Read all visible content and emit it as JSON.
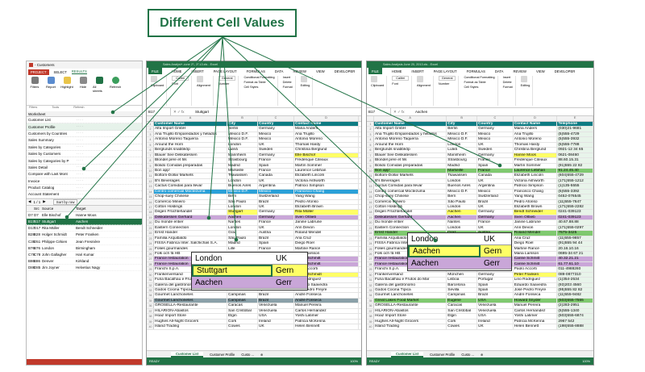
{
  "callout": {
    "text": "Different Cell Values"
  },
  "left_panel": {
    "title": "- Customers",
    "tabs": [
      "PROJECT",
      "SELECT",
      "RESULTS"
    ],
    "ribbon": [
      "Filters",
      "Report",
      "Highlight",
      "Hide",
      "All sheets",
      "Refresh"
    ],
    "groups": [
      "Filters",
      "Tools",
      "Refresh"
    ],
    "worksheet_header": "Worksheet",
    "worksheets": [
      "Customer List",
      "Customer Profile",
      "Customers by Countries",
      "Sales Summary",
      "Sales by Categories",
      "Sales by Customers",
      "Sales by Categories by P",
      "Sales Detail",
      "Compare with Last Mont",
      "Invoice",
      "Product Catalog",
      "Account Statement"
    ],
    "pager": {
      "nums": "1 / 1",
      "sort": "Sort by row"
    },
    "list_header": [
      "",
      "Src",
      "Source",
      "Target"
    ],
    "list_rows": [
      [
        "D7",
        "D7",
        "Elle Bischof",
        "Hanne Moos"
      ],
      [
        "B17",
        "B17",
        "Stuttgart",
        "Aachen"
      ],
      [
        "D17",
        "D17",
        "Rita Müller",
        "Bendt Schneider"
      ],
      [
        "B28",
        "B28",
        "Holger Schmidt",
        "Peter Franken"
      ],
      [
        "C35",
        "D51",
        "Philippe Cirkien",
        "Jean Fresnière"
      ],
      [
        "B76",
        "B76",
        "London",
        "Birmingham"
      ],
      [
        "C78",
        "C78",
        "John Gallagher",
        "Hari Kumar"
      ],
      [
        "B86",
        "B86",
        "Denver",
        "Kirkland"
      ],
      [
        "D86",
        "D85",
        "Jim Joyner",
        "Helvetius Nagy"
      ]
    ]
  },
  "win1": {
    "title": "Sales Analysis June 20, 2013.xls - Excel",
    "menu": [
      "FILE",
      "HOME",
      "INSERT",
      "PAGE LAYOUT",
      "FORMULAS",
      "DATA",
      "REVIEW",
      "VIEW",
      "DEVELOPER"
    ],
    "namebox": "B17",
    "formula": "Stuttgart",
    "font": "Calibri",
    "sheet_tabs": [
      "Customer List",
      "Customer Profile",
      "Custo ..."
    ],
    "status": "READY",
    "zoom": "100%"
  },
  "win2": {
    "title": "Sales Analysis June 20, 2013.xls - Excel",
    "menu": [
      "FILE",
      "HOME",
      "INSERT",
      "PAGE LAYOUT",
      "FORMULAS",
      "DATA",
      "REVIEW",
      "VIEW",
      "DEVELOPER"
    ],
    "namebox": "B17",
    "formula": "Aachen",
    "font": "Calibri",
    "sheet_tabs": [
      "Customer List",
      "Customer Profile",
      "Custo ..."
    ],
    "status": "READY",
    "zoom": "100%"
  },
  "headers1": [
    "Customer Name",
    "City",
    "Country",
    "Contact Name"
  ],
  "headers2": [
    "Customer Name",
    "City",
    "Country",
    "Contact Name",
    "Telephone"
  ],
  "rows1": [
    [
      "Alfa Import GmbH",
      "Berlin",
      "Germany",
      "Maria Anders"
    ],
    [
      "Ana Trujillo Emparedados y helados",
      "México D.F.",
      "Mexico",
      "Ana Trujillo"
    ],
    [
      "Antonio Moreno Taquería",
      "México D.F.",
      "Mexico",
      "Antonio Moreno"
    ],
    [
      "Around the Horn",
      "London",
      "UK",
      "Thomas Hardy"
    ],
    [
      "Berglunds snabbköp",
      "Luleå",
      "Sweden",
      "Christina Berglund"
    ],
    [
      "Blauer See Delikatessen",
      "Mannheim",
      "Germany",
      "Elle Bischof"
    ],
    [
      "Blondel père et fils",
      "Strasbourg",
      "France",
      "Frédérique Citeaux"
    ],
    [
      "Bólido Comidas preparadas",
      "Madrid",
      "Spain",
      "Martín Sommer"
    ],
    [
      "Bon app'",
      "Marseille",
      "France",
      "Laurence Lebihan"
    ],
    [
      "Bottom-Dollar Markets",
      "Tsawassen",
      "Canada",
      "Elizabeth Lincoln"
    ],
    [
      "B's Beverages",
      "London",
      "UK",
      "Victoria Ashworth"
    ],
    [
      "Cactus Comidas para llevar",
      "Buenos Aires",
      "Argentina",
      "Patricio Simpson"
    ],
    [
      "Centro comercial Moctezuma",
      "México D.F.",
      "Mexico",
      "Francisco Chang"
    ],
    [
      "Chop-suey Chinese",
      "Bern",
      "Switzerland",
      "Yang Wang"
    ],
    [
      "Comércio Mineiro",
      "São Paulo",
      "Brazil",
      "Pedro Afonso"
    ],
    [
      "Cotton Holdings",
      "London",
      "UK",
      "Elizabeth Brown"
    ],
    [
      "Degen Früchtehandel",
      "Stuttgart",
      "Germany",
      "Rita Müller"
    ],
    [
      "Delikatessen Gerhard",
      "Aachen",
      "Germany",
      "Sven Ottlieb"
    ],
    [
      "Du monde entier",
      "Nantes",
      "France",
      "Janine Labrune"
    ],
    [
      "Eastern Connection",
      "London",
      "UK",
      "Ann Devon"
    ],
    [
      "Ernst Handel",
      "Graz",
      "Austria",
      "Roland Mendel"
    ],
    [
      "Familia Arquibaldo",
      "São Paulo",
      "Brazil",
      "Aria Cruz"
    ],
    [
      "FISSA Fabrica Inter. Salchichas S.A.",
      "Madrid",
      "Spain",
      "Diego Roel"
    ],
    [
      "Folies gourmandes",
      "Lille",
      "France",
      "Martine Rancé"
    ],
    [
      "Folk och fä HB",
      "Bräcke",
      "Sweden",
      "Maria Larsson"
    ],
    [
      "France restauration",
      "Nantes",
      "France",
      "Carine Schmitt"
    ],
    [
      "France restauration",
      "Toulouse",
      "France",
      "Carine Schmitt"
    ],
    [
      "Franchi S.p.A.",
      "Torino",
      "Italy",
      "Paolo Accorti"
    ],
    [
      "Frankenversand",
      "München",
      "Germany",
      "Holger Schmidt"
    ],
    [
      "Furia Bacalhau e Frutos do Mar",
      "Lisboa",
      "Portugal",
      "Lino Rodriguez"
    ],
    [
      "Galería del gastrónomo",
      "Barcelona",
      "Spain",
      "Eduardo Saavedra"
    ],
    [
      "Godos Cocina Típica",
      "Sevilla",
      "Spain",
      "José Pedro Freyre"
    ],
    [
      "Gourmet Lanchonetes",
      "Campinas",
      "Brazil",
      "André Fonseca"
    ],
    [
      "Gourmet Lanchonetes",
      "Campinas",
      "Brazil",
      "André Fonseca"
    ],
    [
      "GROSELLA-Restaurante",
      "Caracas",
      "Venezuela",
      "Manuel Pereira"
    ],
    [
      "HILARIÓN-Abastos",
      "San Cristóbal",
      "Venezuela",
      "Carlos Hernández"
    ],
    [
      "Hoaz Import Store",
      "Elgin",
      "USA",
      "Yoshi Latimer"
    ],
    [
      "Hughes All-Night Grocers",
      "Cork",
      "Ireland",
      "Patricia McKenna"
    ],
    [
      "Island Trading",
      "Cowes",
      "UK",
      "Helen Bennett"
    ]
  ],
  "rows2": [
    [
      "Alfa Import GmbH",
      "Berlin",
      "Germany",
      "Maria Anders",
      "(030)21-9681"
    ],
    [
      "Ana Trujillo Emparedados y helados",
      "México D.F.",
      "Mexico",
      "Ana Trujillo",
      "(5)555-4729"
    ],
    [
      "Antonio Moreno Taquería",
      "México D.F.",
      "Mexico",
      "Antonio Moreno",
      "(5)555-3932"
    ],
    [
      "Around the Horn",
      "London",
      "UK",
      "Thomas Hardy",
      "(5)555-7788"
    ],
    [
      "Berglunds snabbköp",
      "Luleå",
      "Sweden",
      "Christina Berglund",
      "0921-12 34 65"
    ],
    [
      "Blauer See Delikatessen",
      "Mannheim",
      "Germany",
      "Hanne Moos",
      "0621-08460"
    ],
    [
      "Blondel père et fils",
      "Strasbourg",
      "France",
      "Frédérique Citeaux",
      "88.60.15.31"
    ],
    [
      "Bólido Comidas preparadas",
      "Madrid",
      "Spain",
      "Martín Sommer",
      "(91)555 22 82"
    ],
    [
      "Bon app'",
      "Marseille",
      "France",
      "Laurence Lebihan",
      "91.24.45.40"
    ],
    [
      "Bottom-Dollar Markets",
      "Tsawassen",
      "Canada",
      "Elizabeth Lincoln",
      "(604)555-4729"
    ],
    [
      "B's Beverages",
      "London",
      "UK",
      "Victoria Ashworth",
      "(171)555-1212"
    ],
    [
      "Cactus Comidas para llevar",
      "Buenos Aires",
      "Argentina",
      "Patricio Simpson",
      "(1)135-5555"
    ],
    [
      "Centro comercial Moctezuma",
      "México D.F.",
      "Mexico",
      "Francisco Chang",
      "(5)555-3392"
    ],
    [
      "Chop-suey Chinese",
      "Bern",
      "Switzerland",
      "Yang Wang",
      "0452-076545"
    ],
    [
      "Comércio Mineiro",
      "São Paulo",
      "Brazil",
      "Pedro Afonso",
      "(11)555-7647"
    ],
    [
      "Cotton Holdings",
      "London",
      "UK",
      "Elizabeth Brown",
      "(171)555-2282"
    ],
    [
      "Degen Früchtehandel",
      "Aachen",
      "Germany",
      "Bendt Schneider",
      "0241-039123"
    ],
    [
      "Delikatessen Gerhard",
      "Aachen",
      "Germany",
      "Sven Ottlieb",
      "0241-039123"
    ],
    [
      "Du monde entier",
      "Nantes",
      "France",
      "Janine Labrune",
      "40.67.88.88"
    ],
    [
      "Eastern Connection",
      "London",
      "UK",
      "Ann Devon",
      "(171)555-0297"
    ],
    [
      "Ernst Handel",
      "Graz",
      "Austria",
      "Roland Mendel",
      "7675-3425"
    ],
    [
      "Familia Arquibaldo",
      "São Paulo",
      "Brazil",
      "Aria Cruz",
      "(11)555-9857"
    ],
    [
      "FISSA Fabrica Inter. Salchichas S.A.",
      "Madrid",
      "Spain",
      "Diego Roel",
      "(91)555 94 44"
    ],
    [
      "Folies gourmandes",
      "Lille",
      "France",
      "Martine Rancé",
      "20.16.10.16"
    ],
    [
      "Folk och fä HB",
      "Bräcke",
      "Sweden",
      "Maria Larsson",
      "0695-34 67 21"
    ],
    [
      "France restauration",
      "Nantes",
      "France",
      "Carine Schmitt",
      "40.32.21.21"
    ],
    [
      "France restauration",
      "Toulouse",
      "France",
      "Carine Schmitt",
      "61.77.61.10"
    ],
    [
      "Franchi S.p.A.",
      "Torino",
      "Italy",
      "Paolo Accorti",
      "011-4988260"
    ],
    [
      "Frankenversand",
      "München",
      "Germany",
      "Peter Franken",
      "089-0877310"
    ],
    [
      "Furia Bacalhau e Frutos do Mar",
      "Lisboa",
      "Portugal",
      "Lino Rodriguez",
      "(1)354-2534"
    ],
    [
      "Galería del gastrónomo",
      "Barcelona",
      "Spain",
      "Eduardo Saavedra",
      "(93)203 4560"
    ],
    [
      "Godos Cocina Típica",
      "Sevilla",
      "Spain",
      "José Pedro Freyre",
      "(95)555 82 82"
    ],
    [
      "Gourmet Lanchonetes",
      "Campinas",
      "Brazil",
      "André Fonseca",
      "(11)555-9482"
    ],
    [
      "Great Lakes Food Market",
      "Eugene",
      "USA",
      "Howard Snyder",
      "(503)555-7555"
    ],
    [
      "GROSELLA-Restaurante",
      "Caracas",
      "Venezuela",
      "Manuel Pereira",
      "(2)283-2951"
    ],
    [
      "HILARIÓN-Abastos",
      "San Cristóbal",
      "Venezuela",
      "Carlos Hernández",
      "(5)555-1340"
    ],
    [
      "Hoaz Import Store",
      "Elgin",
      "USA",
      "Yoshi Latimer",
      "(503)555-6874"
    ],
    [
      "Hughes All-Night Grocers",
      "Cork",
      "Ireland",
      "Patricia McKenna",
      "2967 542"
    ],
    [
      "Island Trading",
      "Cowes",
      "UK",
      "Helen Bennett",
      "(198)555-8888"
    ]
  ],
  "zoom1": {
    "r1": [
      "London",
      "UK"
    ],
    "r2": [
      "Stuttgart",
      "Gern"
    ],
    "r3": [
      "Aachen",
      "Gerr"
    ]
  },
  "zoom2": {
    "r1": [
      "London",
      "UK"
    ],
    "r2": [
      "Aachen",
      "Gern"
    ],
    "r3": [
      "Aachen",
      "Gerr"
    ]
  },
  "colors": {
    "excel_green": "#217346",
    "header_teal": "#0e7c83",
    "yellow": "#ffff66",
    "purple": "#c9a6d8",
    "blue": "#2aa0d8",
    "green": "#7fc96f",
    "diff_outline": "#217346"
  }
}
